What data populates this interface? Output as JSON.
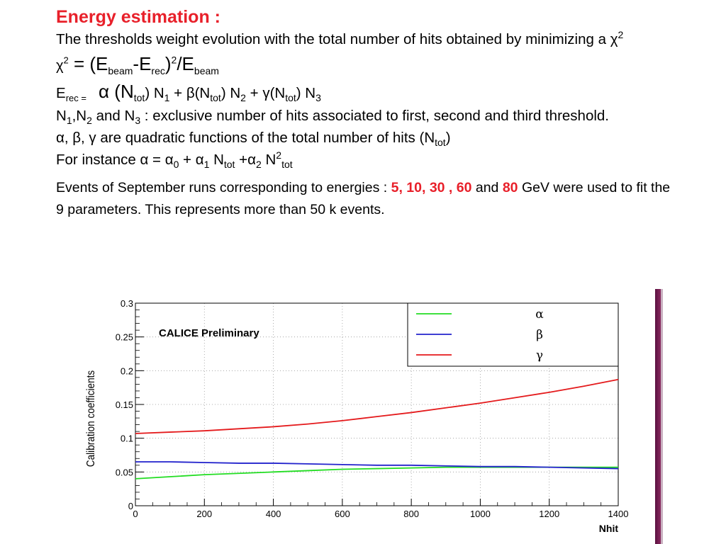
{
  "slide": {
    "title": "Energy estimation :",
    "line1": "The thresholds weight evolution with the total number of hits obtained by minimizing a χ",
    "line1_sup": "2",
    "eq1": {
      "chi": "χ",
      "chi_sup": "2",
      "eq_start": " = (E",
      "beam_sub": "beam",
      "minus_e": "-E",
      "rec_sub": "rec",
      "close": ")",
      "sq_sup": "2",
      "slash_e": "/E",
      "beam_sub2": "beam"
    },
    "eq2": {
      "e": "E",
      "rec_eq_sub": "rec =",
      "alpha_n": "α (N",
      "tot1": "tot",
      "p1": ") N",
      "n1": "1",
      "p2": " + β(N",
      "tot2": "tot",
      "p3": ") N",
      "n2": "2",
      "p4": " + γ(N",
      "tot3": "tot",
      "p5": ") N",
      "n3": "3"
    },
    "line4": {
      "a": "N",
      "s1": "1",
      "b": ",N",
      "s2": "2",
      "c": " and N",
      "s3": "3",
      "d": " : exclusive number of hits associated to first, second and third threshold."
    },
    "line5": {
      "a": " α, β, γ  are quadratic functions of the total number of hits (N",
      "s": "tot",
      "b": ")"
    },
    "line6": {
      "a": "For instance α = α",
      "s0": "0",
      "b": " + α",
      "s1": "1",
      "c": " N",
      "t1": "tot",
      "d": " +α",
      "s2": "2",
      "e": " N",
      "sq": "2",
      "t2": "tot"
    },
    "events": {
      "a": "Events of September runs corresponding to energies : ",
      "energies": "5, 10, 30 , 60",
      "b": " and ",
      "e80": "80",
      "c": " GeV were used  to fit the 9 parameters.  This represents more than 50 k events."
    }
  },
  "chart_data": {
    "type": "line",
    "ylabel": "Calibration coefficients",
    "xlabel": "Nhit",
    "annotation": "CALICE Preliminary",
    "xlim": [
      0,
      1400
    ],
    "ylim": [
      0,
      0.3
    ],
    "x_ticks": [
      0,
      200,
      400,
      600,
      800,
      1000,
      1200,
      1400
    ],
    "x_tick_labels": [
      "0",
      "200",
      "400",
      "600",
      "800",
      "1000",
      "1200",
      "1400"
    ],
    "y_ticks": [
      0,
      0.05,
      0.1,
      0.15,
      0.2,
      0.25,
      0.3
    ],
    "y_tick_labels": [
      "0",
      "0.05",
      "0.1",
      "0.15",
      "0.2",
      "0.25",
      "0.3"
    ],
    "grid": true,
    "legend_position": "top-right",
    "x": [
      0,
      100,
      200,
      300,
      400,
      500,
      600,
      700,
      800,
      900,
      1000,
      1100,
      1200,
      1300,
      1400
    ],
    "series": [
      {
        "name": "α",
        "color": "#22dd22",
        "values": [
          0.04,
          0.043,
          0.046,
          0.048,
          0.05,
          0.052,
          0.054,
          0.055,
          0.056,
          0.057,
          0.057,
          0.057,
          0.057,
          0.057,
          0.057
        ]
      },
      {
        "name": "β",
        "color": "#2222cc",
        "values": [
          0.065,
          0.065,
          0.064,
          0.063,
          0.063,
          0.062,
          0.061,
          0.06,
          0.06,
          0.059,
          0.058,
          0.058,
          0.057,
          0.056,
          0.055
        ]
      },
      {
        "name": "γ",
        "color": "#e41a1c",
        "values": [
          0.107,
          0.109,
          0.111,
          0.114,
          0.117,
          0.121,
          0.126,
          0.132,
          0.138,
          0.145,
          0.152,
          0.16,
          0.168,
          0.177,
          0.187
        ]
      }
    ]
  }
}
